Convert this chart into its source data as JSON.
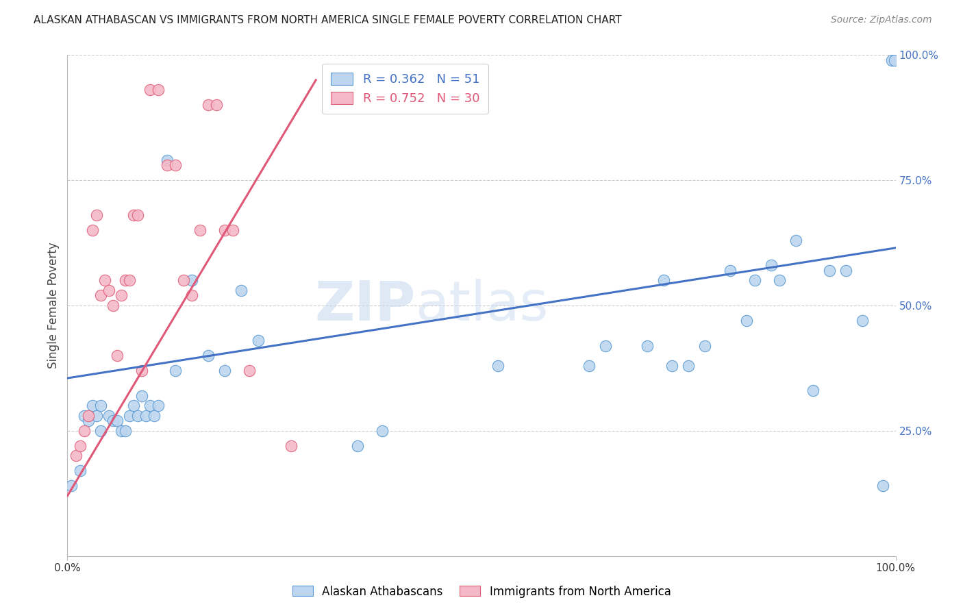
{
  "title": "ALASKAN ATHABASCAN VS IMMIGRANTS FROM NORTH AMERICA SINGLE FEMALE POVERTY CORRELATION CHART",
  "source": "Source: ZipAtlas.com",
  "ylabel": "Single Female Poverty",
  "xlim": [
    0,
    1
  ],
  "ylim": [
    0,
    1
  ],
  "ytick_positions": [
    0.25,
    0.5,
    0.75,
    1.0
  ],
  "ytick_labels": [
    "25.0%",
    "50.0%",
    "75.0%",
    "100.0%"
  ],
  "xtick_positions": [
    0.0,
    1.0
  ],
  "xtick_labels": [
    "0.0%",
    "100.0%"
  ],
  "grid_color": "#cccccc",
  "background_color": "#ffffff",
  "blue_dot_fill": "#bdd5ee",
  "blue_dot_edge": "#5b9bd5",
  "pink_dot_fill": "#f4b8c8",
  "pink_dot_edge": "#e0607a",
  "blue_line_color": "#4472c4",
  "pink_line_color": "#e05878",
  "legend_blue_r": "R = 0.362",
  "legend_blue_n": "N = 51",
  "legend_pink_r": "R = 0.752",
  "legend_pink_n": "N = 30",
  "watermark_zip": "ZIP",
  "watermark_atlas": "atlas",
  "title_color": "#222222",
  "source_color": "#888888",
  "tick_color": "#4472c4",
  "axis_label_color": "#444444",
  "blue_scatter_x": [
    0.005,
    0.015,
    0.02,
    0.025,
    0.03,
    0.035,
    0.04,
    0.04,
    0.05,
    0.055,
    0.06,
    0.065,
    0.07,
    0.075,
    0.08,
    0.085,
    0.09,
    0.095,
    0.1,
    0.105,
    0.11,
    0.12,
    0.13,
    0.15,
    0.17,
    0.19,
    0.21,
    0.23,
    0.35,
    0.38,
    0.52,
    0.63,
    0.65,
    0.7,
    0.72,
    0.73,
    0.75,
    0.77,
    0.8,
    0.82,
    0.83,
    0.85,
    0.86,
    0.88,
    0.9,
    0.92,
    0.94,
    0.96,
    0.985,
    0.995,
    0.999
  ],
  "blue_scatter_y": [
    0.14,
    0.17,
    0.28,
    0.27,
    0.3,
    0.28,
    0.25,
    0.3,
    0.28,
    0.27,
    0.27,
    0.25,
    0.25,
    0.28,
    0.3,
    0.28,
    0.32,
    0.28,
    0.3,
    0.28,
    0.3,
    0.79,
    0.37,
    0.55,
    0.4,
    0.37,
    0.53,
    0.43,
    0.22,
    0.25,
    0.38,
    0.38,
    0.42,
    0.42,
    0.55,
    0.38,
    0.38,
    0.42,
    0.57,
    0.47,
    0.55,
    0.58,
    0.55,
    0.63,
    0.33,
    0.57,
    0.57,
    0.47,
    0.14,
    0.99,
    0.99
  ],
  "pink_scatter_x": [
    0.01,
    0.015,
    0.02,
    0.025,
    0.03,
    0.035,
    0.04,
    0.045,
    0.05,
    0.055,
    0.06,
    0.065,
    0.07,
    0.075,
    0.08,
    0.085,
    0.09,
    0.1,
    0.11,
    0.12,
    0.13,
    0.14,
    0.15,
    0.16,
    0.17,
    0.18,
    0.19,
    0.2,
    0.22,
    0.27
  ],
  "pink_scatter_y": [
    0.2,
    0.22,
    0.25,
    0.28,
    0.65,
    0.68,
    0.52,
    0.55,
    0.53,
    0.5,
    0.4,
    0.52,
    0.55,
    0.55,
    0.68,
    0.68,
    0.37,
    0.93,
    0.93,
    0.78,
    0.78,
    0.55,
    0.52,
    0.65,
    0.9,
    0.9,
    0.65,
    0.65,
    0.37,
    0.22
  ],
  "blue_trend_x": [
    0.0,
    1.0
  ],
  "blue_trend_y": [
    0.355,
    0.615
  ],
  "pink_trend_x": [
    0.0,
    0.3
  ],
  "pink_trend_y": [
    0.12,
    0.95
  ]
}
